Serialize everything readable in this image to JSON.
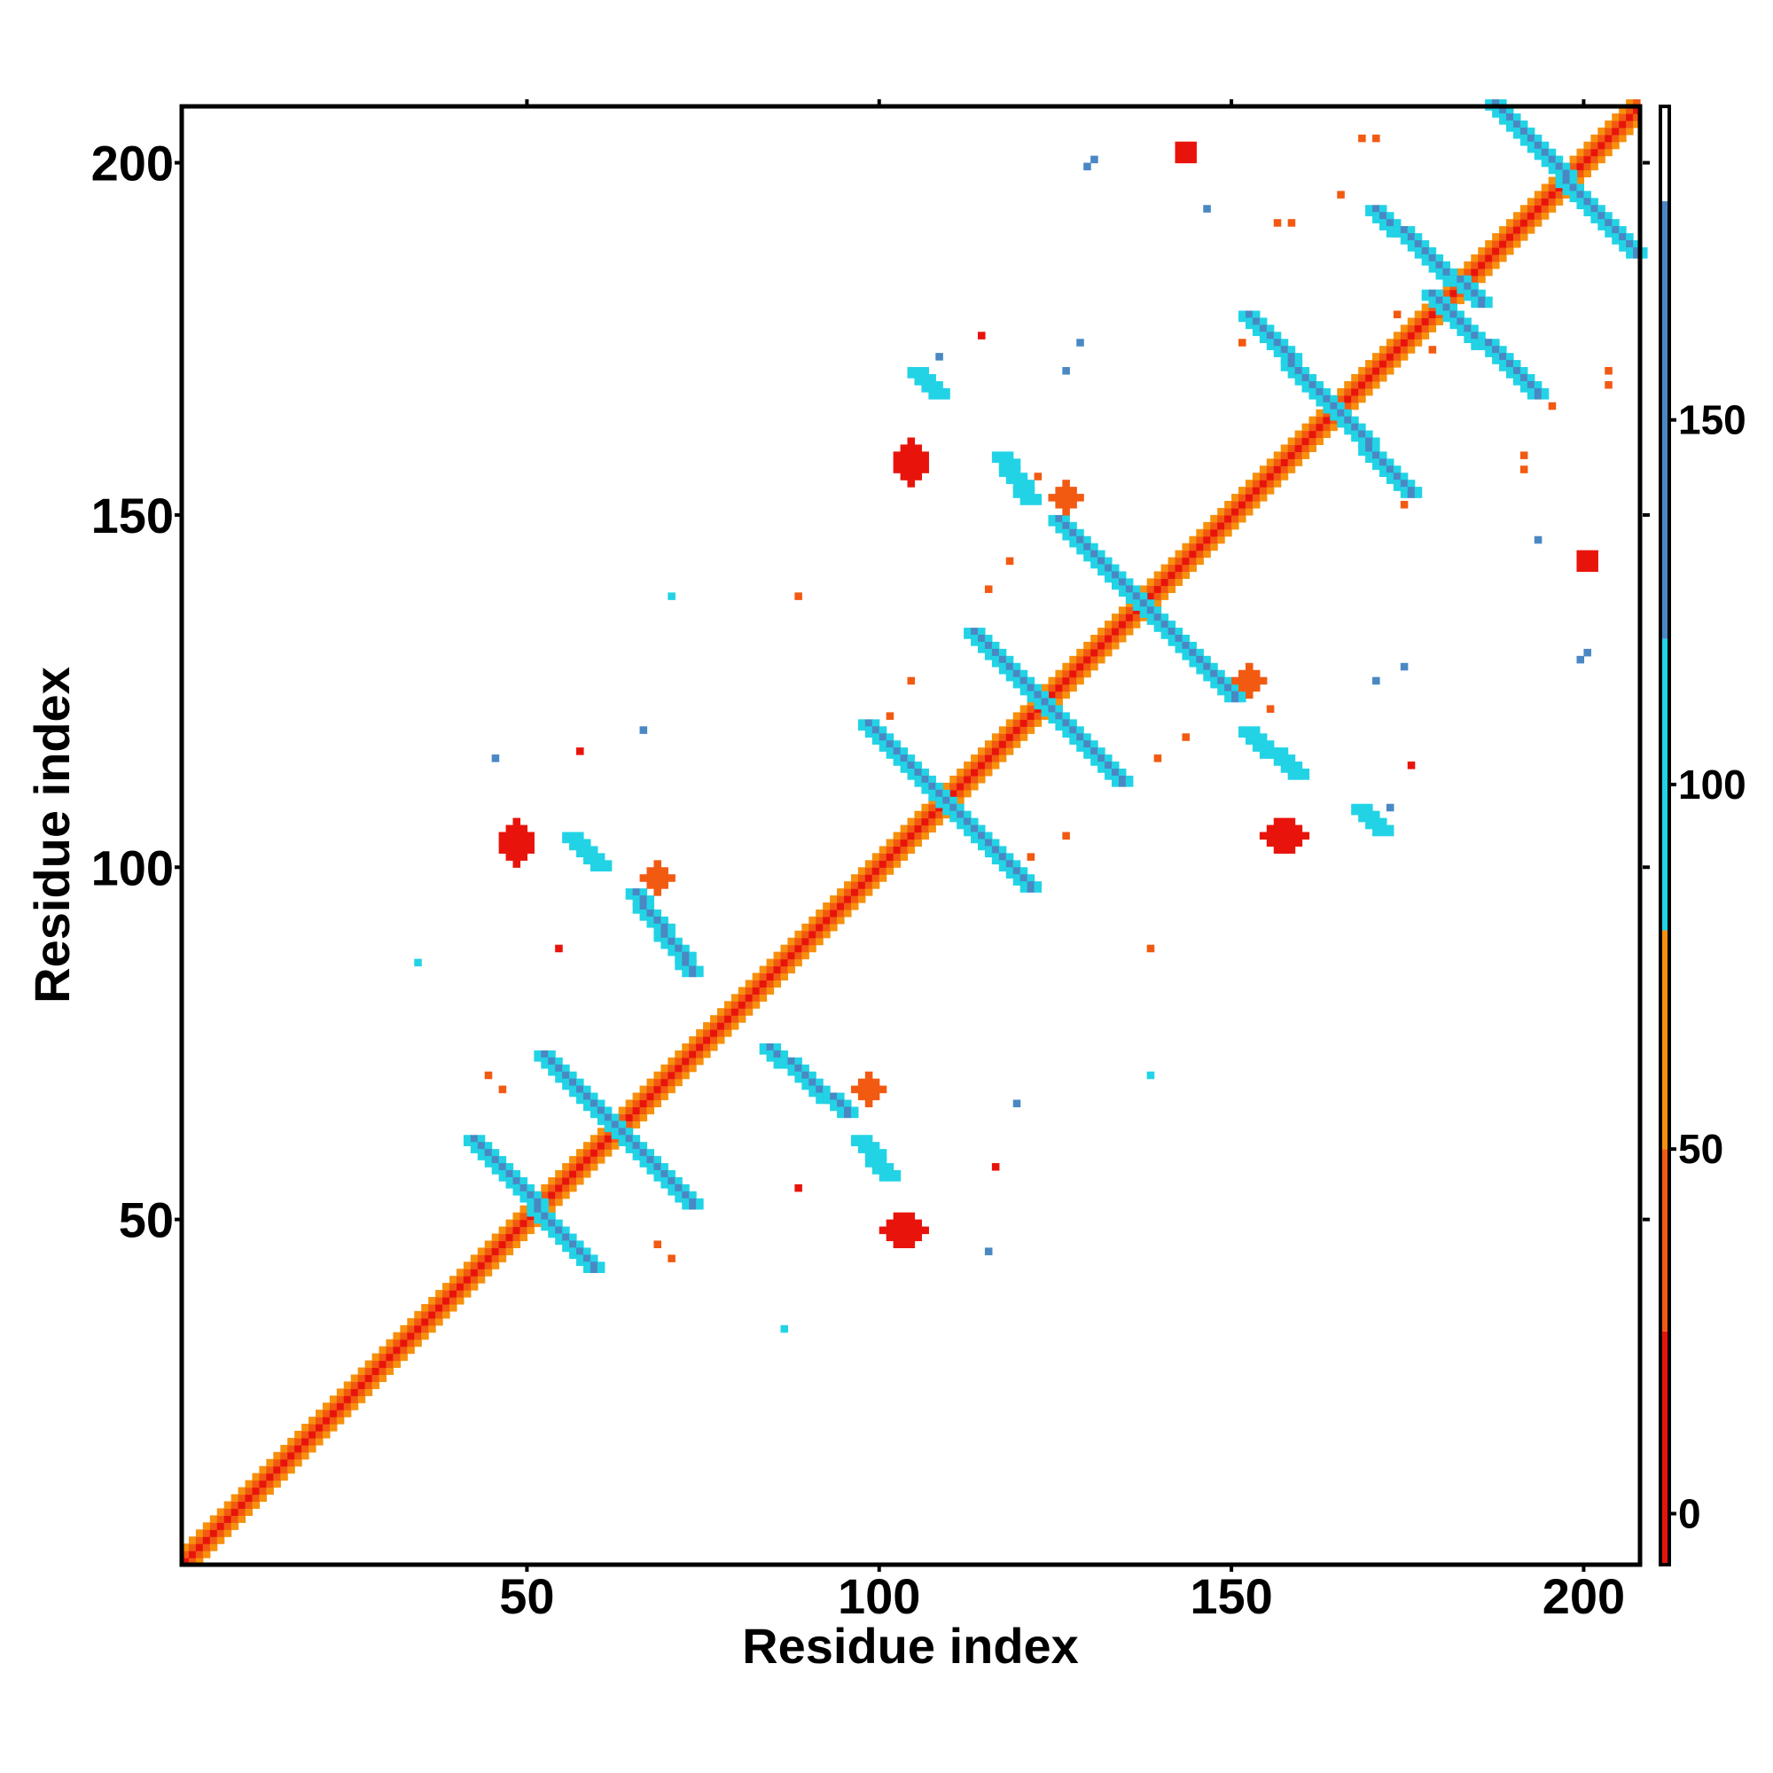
{
  "chart_data": {
    "type": "heatmap",
    "title": "",
    "xlabel": "Residue index",
    "ylabel": "Residue index",
    "xlim": [
      1,
      208
    ],
    "ylim": [
      1,
      208
    ],
    "x_ticks": [
      50,
      100,
      150,
      200
    ],
    "y_ticks": [
      50,
      100,
      150,
      200
    ],
    "x_tick_labels": [
      "50",
      "100",
      "150",
      "200"
    ],
    "y_tick_labels": [
      "50",
      "100",
      "150",
      "200"
    ],
    "grid": false,
    "symmetric": true,
    "colorbar": {
      "position": "right",
      "range": [
        -7,
        193
      ],
      "ticks": [
        0,
        50,
        100,
        150
      ],
      "tick_labels": [
        "0",
        "50",
        "100",
        "150"
      ],
      "bands": [
        {
          "from": -7,
          "to": 25,
          "color": "#e8140c"
        },
        {
          "from": 25,
          "to": 50,
          "color": "#f25a12"
        },
        {
          "from": 50,
          "to": 80,
          "color": "#f7900c"
        },
        {
          "from": 80,
          "to": 120,
          "color": "#22d3e6"
        },
        {
          "from": 120,
          "to": 180,
          "color": "#4a88c4"
        },
        {
          "from": 180,
          "to": 193,
          "color": "#ffffff"
        }
      ]
    },
    "diagonal": {
      "from": 1,
      "to": 207,
      "pattern": [
        "#e8140c",
        "#f25a12",
        "#f7900c"
      ]
    },
    "contact_segments": [
      {
        "x1": 42,
        "y1": 61,
        "x2": 59,
        "y2": 43,
        "value": 135
      },
      {
        "x1": 52,
        "y1": 73,
        "x2": 73,
        "y2": 52,
        "value": 135
      },
      {
        "x1": 65,
        "y1": 96,
        "x2": 73,
        "y2": 85,
        "value": 135
      },
      {
        "x1": 84,
        "y1": 74,
        "x2": 95,
        "y2": 65,
        "value": 135
      },
      {
        "x1": 98,
        "y1": 120,
        "x2": 121,
        "y2": 97,
        "value": 135
      },
      {
        "x1": 113,
        "y1": 133,
        "x2": 134,
        "y2": 112,
        "value": 135
      },
      {
        "x1": 125,
        "y1": 149,
        "x2": 150,
        "y2": 124,
        "value": 135
      },
      {
        "x1": 152,
        "y1": 178,
        "x2": 175,
        "y2": 153,
        "value": 135
      },
      {
        "x1": 170,
        "y1": 193,
        "x2": 185,
        "y2": 180,
        "value": 135
      },
      {
        "x1": 178,
        "y1": 181,
        "x2": 193,
        "y2": 167,
        "value": 135
      },
      {
        "x1": 187,
        "y1": 208,
        "x2": 207,
        "y2": 187,
        "value": 135
      },
      {
        "x1": 56,
        "y1": 104,
        "x2": 60,
        "y2": 100,
        "value": 110
      },
      {
        "x1": 97,
        "y1": 61,
        "x2": 101,
        "y2": 56,
        "value": 110
      },
      {
        "x1": 117,
        "y1": 158,
        "x2": 121,
        "y2": 152,
        "value": 110
      },
      {
        "x1": 152,
        "y1": 119,
        "x2": 159,
        "y2": 113,
        "value": 110
      },
      {
        "x1": 105,
        "y1": 170,
        "x2": 108,
        "y2": 167,
        "value": 110
      },
      {
        "x1": 168,
        "y1": 108,
        "x2": 171,
        "y2": 105,
        "value": 110
      }
    ],
    "contact_patches": [
      {
        "x": 48,
        "y": 103,
        "rx": 2.5,
        "ry": 3,
        "value": 5
      },
      {
        "x": 103,
        "y": 48,
        "rx": 3,
        "ry": 2.5,
        "value": 5
      },
      {
        "x": 104,
        "y": 157,
        "rx": 2.5,
        "ry": 3,
        "value": 5
      },
      {
        "x": 157,
        "y": 104,
        "rx": 3,
        "ry": 2.5,
        "value": 5
      },
      {
        "x": 68,
        "y": 98,
        "rx": 2,
        "ry": 2,
        "value": 40
      },
      {
        "x": 98,
        "y": 68,
        "rx": 2,
        "ry": 2,
        "value": 40
      },
      {
        "x": 126,
        "y": 152,
        "rx": 2,
        "ry": 2,
        "value": 40
      },
      {
        "x": 152,
        "y": 126,
        "rx": 2,
        "ry": 2,
        "value": 40
      },
      {
        "x": 143,
        "y": 201,
        "rx": 1.5,
        "ry": 1.5,
        "value": 5
      },
      {
        "x": 200,
        "y": 143,
        "rx": 1.5,
        "ry": 1.5,
        "value": 5
      }
    ],
    "contact_points": [
      {
        "x": 34,
        "y": 86,
        "value": 100
      },
      {
        "x": 86,
        "y": 34,
        "value": 100
      },
      {
        "x": 45,
        "y": 115,
        "value": 140
      },
      {
        "x": 115,
        "y": 45,
        "value": 140
      },
      {
        "x": 57,
        "y": 116,
        "value": 10
      },
      {
        "x": 116,
        "y": 57,
        "value": 10
      },
      {
        "x": 66,
        "y": 119,
        "value": 140
      },
      {
        "x": 119,
        "y": 66,
        "value": 140
      },
      {
        "x": 70,
        "y": 138,
        "value": 100
      },
      {
        "x": 138,
        "y": 70,
        "value": 100
      },
      {
        "x": 88,
        "y": 138,
        "value": 40
      },
      {
        "x": 138,
        "y": 88,
        "value": 40
      },
      {
        "x": 44,
        "y": 70,
        "value": 40
      },
      {
        "x": 70,
        "y": 44,
        "value": 40
      },
      {
        "x": 68,
        "y": 46,
        "value": 40
      },
      {
        "x": 46,
        "y": 68,
        "value": 40
      },
      {
        "x": 54,
        "y": 88,
        "value": 10
      },
      {
        "x": 88,
        "y": 54,
        "value": 10
      },
      {
        "x": 101,
        "y": 121,
        "value": 40
      },
      {
        "x": 121,
        "y": 101,
        "value": 40
      },
      {
        "x": 114,
        "y": 175,
        "value": 10
      },
      {
        "x": 175,
        "y": 114,
        "value": 10
      },
      {
        "x": 108,
        "y": 172,
        "value": 140
      },
      {
        "x": 172,
        "y": 108,
        "value": 140
      },
      {
        "x": 118,
        "y": 143,
        "value": 40
      },
      {
        "x": 143,
        "y": 118,
        "value": 40
      },
      {
        "x": 128,
        "y": 174,
        "value": 140
      },
      {
        "x": 174,
        "y": 128,
        "value": 140
      },
      {
        "x": 130,
        "y": 200,
        "value": 140
      },
      {
        "x": 200,
        "y": 130,
        "value": 140
      },
      {
        "x": 146,
        "y": 193,
        "value": 140
      },
      {
        "x": 193,
        "y": 146,
        "value": 140
      },
      {
        "x": 151,
        "y": 174,
        "value": 40
      },
      {
        "x": 174,
        "y": 151,
        "value": 40
      },
      {
        "x": 156,
        "y": 191,
        "value": 40
      },
      {
        "x": 191,
        "y": 156,
        "value": 40
      },
      {
        "x": 139,
        "y": 115,
        "value": 40
      },
      {
        "x": 115,
        "y": 139,
        "value": 40
      },
      {
        "x": 126,
        "y": 104,
        "value": 40
      },
      {
        "x": 104,
        "y": 126,
        "value": 40
      },
      {
        "x": 168,
        "y": 203,
        "value": 40
      },
      {
        "x": 203,
        "y": 168,
        "value": 40
      },
      {
        "x": 178,
        "y": 173,
        "value": 40
      },
      {
        "x": 173,
        "y": 178,
        "value": 40
      },
      {
        "x": 155,
        "y": 122,
        "value": 40
      },
      {
        "x": 122,
        "y": 155,
        "value": 40
      },
      {
        "x": 170,
        "y": 126,
        "value": 140
      },
      {
        "x": 126,
        "y": 170,
        "value": 140
      },
      {
        "x": 199,
        "y": 129,
        "value": 140
      },
      {
        "x": 129,
        "y": 199,
        "value": 140
      },
      {
        "x": 195,
        "y": 165,
        "value": 40
      },
      {
        "x": 165,
        "y": 195,
        "value": 40
      },
      {
        "x": 191,
        "y": 158,
        "value": 40
      },
      {
        "x": 158,
        "y": 191,
        "value": 40
      },
      {
        "x": 203,
        "y": 170,
        "value": 40
      },
      {
        "x": 170,
        "y": 203,
        "value": 40
      }
    ]
  }
}
